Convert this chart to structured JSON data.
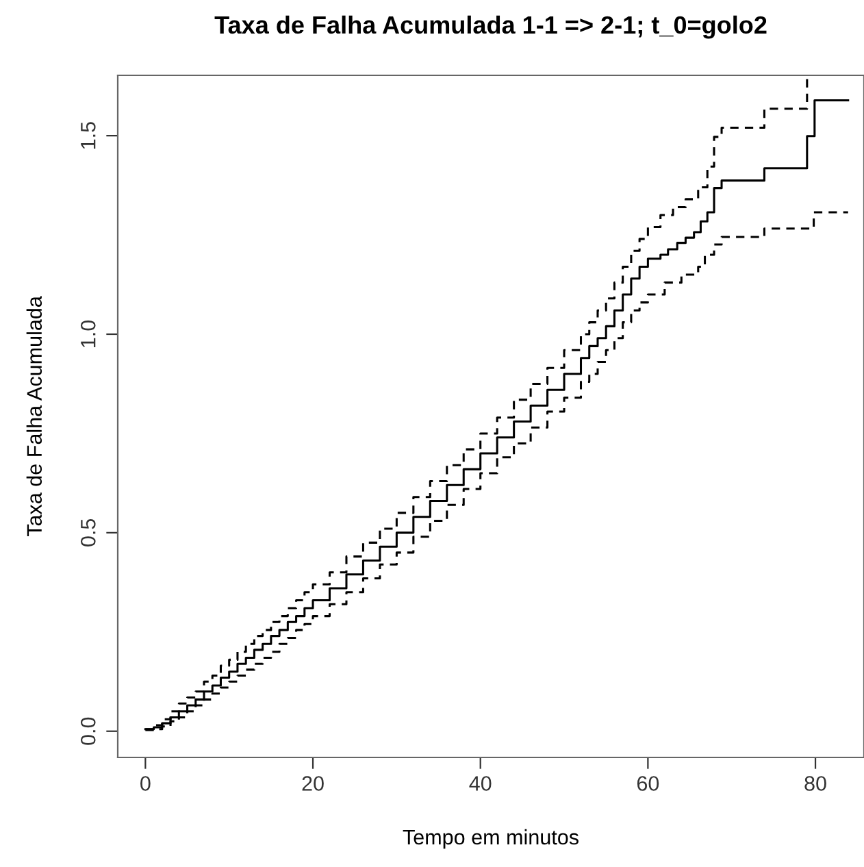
{
  "chart_data": {
    "type": "step",
    "title": "Taxa de Falha Acumulada 1-1 => 2-1; t_0=golo2",
    "xlabel": "Tempo em minutos",
    "ylabel": "Taxa de Falha Acumulada",
    "xlim": [
      -3.3,
      85.8
    ],
    "ylim": [
      -0.066,
      1.652
    ],
    "xticks": [
      0,
      20,
      40,
      60,
      80
    ],
    "yticks": [
      {
        "value": 0,
        "label": "0.0"
      },
      0.5,
      {
        "value": 1,
        "label": "1.0"
      },
      1.5
    ],
    "grid": false,
    "legend": false,
    "series": [
      {
        "color": "#000000",
        "line_style": "solid",
        "x": [
          0,
          1,
          2,
          3,
          4,
          5,
          6,
          7,
          8,
          9,
          10,
          11,
          12,
          13,
          14,
          15,
          16,
          17,
          18,
          19,
          20,
          22,
          24,
          26,
          28,
          30,
          32,
          34,
          36,
          38,
          40,
          42,
          44,
          46,
          48,
          50,
          52,
          53,
          54,
          55,
          56,
          57,
          58,
          59,
          60,
          61.5,
          62.4,
          63.5,
          64.5,
          65.5,
          66.3,
          67.1,
          67.9,
          68.8,
          73.9,
          79.0,
          79.9,
          83.9
        ],
        "values": [
          0.005,
          0.01,
          0.02,
          0.035,
          0.05,
          0.065,
          0.08,
          0.1,
          0.115,
          0.135,
          0.15,
          0.17,
          0.185,
          0.205,
          0.22,
          0.24,
          0.255,
          0.275,
          0.29,
          0.31,
          0.33,
          0.36,
          0.395,
          0.43,
          0.465,
          0.5,
          0.54,
          0.58,
          0.62,
          0.66,
          0.7,
          0.74,
          0.78,
          0.82,
          0.86,
          0.9,
          0.94,
          0.97,
          0.99,
          1.02,
          1.06,
          1.1,
          1.14,
          1.17,
          1.19,
          1.2,
          1.214,
          1.23,
          1.243,
          1.257,
          1.284,
          1.307,
          1.368,
          1.387,
          1.418,
          1.499,
          1.589,
          1.589
        ]
      },
      {
        "color": "#000000",
        "line_style": "dashed",
        "x": [
          0,
          1,
          2,
          3,
          4,
          5,
          6,
          7,
          8,
          9,
          10,
          11,
          12,
          13,
          14,
          15,
          16,
          17,
          18,
          19,
          20,
          22,
          24,
          26,
          28,
          30,
          32,
          34,
          36,
          38,
          40,
          42,
          44,
          46,
          48,
          50,
          52,
          53,
          54,
          55,
          56,
          57,
          58,
          59,
          60,
          61.5,
          63,
          64.5,
          66,
          67.1,
          67.9,
          68.8,
          73.9,
          79.0
        ],
        "values": [
          0.005,
          0.015,
          0.03,
          0.05,
          0.07,
          0.085,
          0.1,
          0.125,
          0.14,
          0.165,
          0.18,
          0.2,
          0.22,
          0.24,
          0.255,
          0.275,
          0.29,
          0.31,
          0.33,
          0.35,
          0.37,
          0.4,
          0.44,
          0.475,
          0.51,
          0.55,
          0.59,
          0.63,
          0.67,
          0.71,
          0.75,
          0.79,
          0.835,
          0.875,
          0.915,
          0.96,
          1.0,
          1.03,
          1.06,
          1.09,
          1.13,
          1.17,
          1.21,
          1.24,
          1.27,
          1.3,
          1.32,
          1.34,
          1.37,
          1.422,
          1.497,
          1.52,
          1.568,
          1.652
        ]
      },
      {
        "color": "#000000",
        "line_style": "dashed",
        "x": [
          0,
          1,
          2,
          3,
          4,
          5,
          6,
          7,
          8,
          9,
          10,
          11,
          12,
          13,
          14,
          15,
          16,
          17,
          18,
          19,
          20,
          22,
          24,
          26,
          28,
          30,
          32,
          34,
          36,
          38,
          40,
          42,
          44,
          46,
          48,
          50,
          52,
          53,
          54,
          55,
          56,
          57,
          58,
          59,
          60,
          62,
          64,
          66,
          66.8,
          67.9,
          68.8,
          73.9,
          79.8,
          83.9
        ],
        "values": [
          0.003,
          0.005,
          0.012,
          0.025,
          0.035,
          0.05,
          0.065,
          0.08,
          0.095,
          0.11,
          0.125,
          0.14,
          0.155,
          0.17,
          0.185,
          0.2,
          0.22,
          0.235,
          0.255,
          0.27,
          0.29,
          0.32,
          0.35,
          0.385,
          0.42,
          0.45,
          0.49,
          0.53,
          0.57,
          0.61,
          0.65,
          0.69,
          0.725,
          0.765,
          0.805,
          0.84,
          0.88,
          0.9,
          0.93,
          0.96,
          0.99,
          1.03,
          1.06,
          1.08,
          1.1,
          1.13,
          1.15,
          1.17,
          1.2,
          1.226,
          1.245,
          1.266,
          1.307,
          1.307
        ]
      }
    ]
  }
}
